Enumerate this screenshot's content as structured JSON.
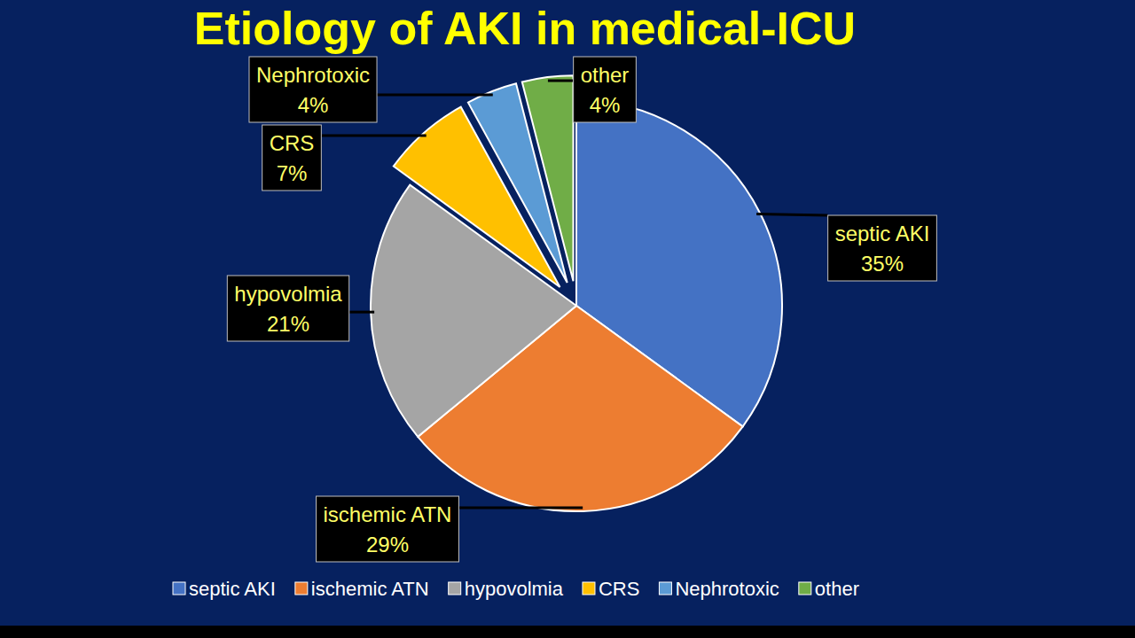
{
  "chart_data": {
    "type": "pie",
    "title": "Etiology of AKI in medical-ICU",
    "categories": [
      "septic AKI",
      "ischemic ATN",
      "hypovolmia",
      "CRS",
      "Nephrotoxic",
      "other"
    ],
    "values": [
      35,
      29,
      21,
      7,
      4,
      4
    ],
    "value_labels": [
      "35%",
      "29%",
      "21%",
      "7%",
      "4%",
      "4%"
    ],
    "colors": [
      "#4472c4",
      "#ed7d31",
      "#a5a5a5",
      "#ffc000",
      "#5b9bd5",
      "#70ad47"
    ],
    "data_labels": true,
    "legend": "bottom"
  }
}
